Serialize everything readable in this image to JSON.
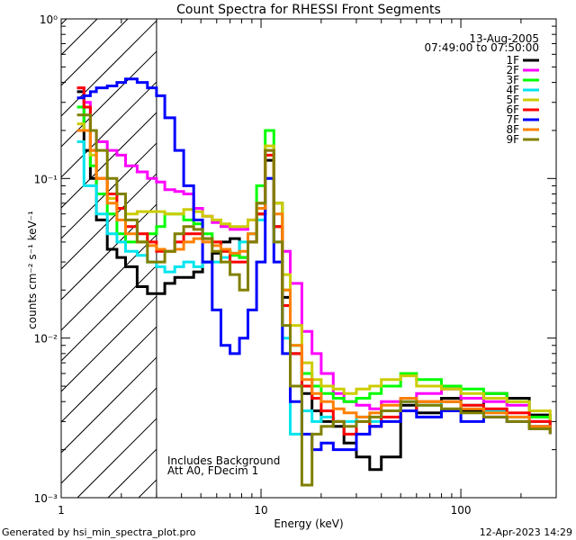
{
  "chart_data": {
    "type": "line",
    "title": "Count Spectra for RHESSI Front Segments",
    "xlabel": "Energy (keV)",
    "ylabel": "counts cm⁻² s⁻¹ keV⁻¹",
    "x_scale": "log",
    "y_scale": "log",
    "xlim": [
      1,
      300
    ],
    "ylim": [
      0.001,
      1
    ],
    "x_ticks": [
      {
        "value": 1,
        "label": "1"
      },
      {
        "value": 10,
        "label": "10"
      },
      {
        "value": 100,
        "label": "100"
      }
    ],
    "y_ticks": [
      {
        "value": 1,
        "label": "10⁰"
      },
      {
        "value": 0.1,
        "label": "10⁻¹"
      },
      {
        "value": 0.01,
        "label": "10⁻²"
      },
      {
        "value": 0.001,
        "label": "10⁻³"
      }
    ],
    "date": "13-Aug-2005",
    "time_range": "07:49:00 to 07:50:00",
    "notes": [
      "Includes Background",
      "Att A0, FDecim 1"
    ],
    "shaded_region_below_kev": 3,
    "legend_position": "top-right",
    "series": [
      {
        "name": "1F",
        "color": "#000000",
        "x": [
          1.2,
          1.3,
          1.4,
          1.5,
          1.7,
          1.9,
          2.1,
          2.4,
          2.7,
          3.0,
          3.3,
          3.7,
          4.1,
          4.6,
          5.1,
          5.7,
          6.3,
          7.0,
          7.8,
          8.6,
          9.5,
          10.5,
          11.6,
          12.8,
          14.0,
          16.0,
          18.0,
          20.0,
          23.0,
          26.0,
          30.0,
          35.0,
          40.0,
          50.0,
          60.0,
          80.0,
          100.0,
          130.0,
          170.0,
          220.0,
          280.0
        ],
        "values": [
          0.35,
          0.15,
          0.1,
          0.055,
          0.036,
          0.032,
          0.028,
          0.021,
          0.019,
          0.019,
          0.022,
          0.024,
          0.024,
          0.026,
          0.03,
          0.034,
          0.04,
          0.042,
          0.032,
          0.04,
          0.06,
          0.13,
          0.05,
          0.018,
          0.008,
          0.0045,
          0.0035,
          0.003,
          0.0028,
          0.0022,
          0.0018,
          0.0015,
          0.0018,
          0.0038,
          0.0034,
          0.0042,
          0.0035,
          0.0045,
          0.0042,
          0.0033,
          0.003
        ]
      },
      {
        "name": "2F",
        "color": "#ff00ff",
        "x": [
          1.2,
          1.3,
          1.4,
          1.5,
          1.7,
          1.9,
          2.1,
          2.4,
          2.7,
          3.0,
          3.3,
          3.7,
          4.1,
          4.6,
          5.1,
          5.7,
          6.3,
          7.0,
          7.8,
          8.6,
          9.5,
          10.5,
          11.6,
          12.8,
          14.0,
          16.0,
          18.0,
          20.0,
          23.0,
          26.0,
          30.0,
          35.0,
          40.0,
          50.0,
          60.0,
          80.0,
          100.0,
          130.0,
          170.0,
          220.0,
          280.0
        ],
        "values": [
          0.37,
          0.3,
          0.2,
          0.17,
          0.15,
          0.14,
          0.12,
          0.11,
          0.1,
          0.095,
          0.085,
          0.083,
          0.08,
          0.065,
          0.058,
          0.053,
          0.05,
          0.048,
          0.048,
          0.055,
          0.07,
          0.15,
          0.07,
          0.035,
          0.022,
          0.011,
          0.008,
          0.006,
          0.0045,
          0.004,
          0.0038,
          0.0036,
          0.004,
          0.0042,
          0.0045,
          0.0048,
          0.0042,
          0.004,
          0.0038,
          0.003,
          0.0028
        ]
      },
      {
        "name": "3F",
        "color": "#00ff00",
        "x": [
          1.2,
          1.3,
          1.4,
          1.5,
          1.7,
          1.9,
          2.1,
          2.4,
          2.7,
          3.0,
          3.3,
          3.7,
          4.1,
          4.6,
          5.1,
          5.7,
          6.3,
          7.0,
          7.8,
          8.6,
          9.5,
          10.5,
          11.6,
          12.8,
          14.0,
          16.0,
          18.0,
          20.0,
          23.0,
          26.0,
          30.0,
          35.0,
          40.0,
          50.0,
          60.0,
          80.0,
          100.0,
          130.0,
          170.0,
          220.0,
          280.0
        ],
        "values": [
          0.28,
          0.2,
          0.12,
          0.08,
          0.06,
          0.045,
          0.04,
          0.04,
          0.045,
          0.05,
          0.06,
          0.06,
          0.055,
          0.052,
          0.045,
          0.04,
          0.035,
          0.033,
          0.032,
          0.045,
          0.09,
          0.2,
          0.07,
          0.02,
          0.009,
          0.006,
          0.005,
          0.0045,
          0.0042,
          0.004,
          0.0042,
          0.0045,
          0.005,
          0.006,
          0.0055,
          0.005,
          0.0048,
          0.0045,
          0.004,
          0.0032,
          0.0028
        ]
      },
      {
        "name": "4F",
        "color": "#00e5ee",
        "x": [
          1.2,
          1.3,
          1.4,
          1.5,
          1.7,
          1.9,
          2.1,
          2.4,
          2.7,
          3.0,
          3.3,
          3.7,
          4.1,
          4.6,
          5.1,
          5.7,
          6.3,
          7.0,
          7.8,
          8.6,
          9.5,
          10.5,
          11.6,
          12.8,
          14.0,
          16.0,
          18.0,
          20.0,
          23.0,
          26.0,
          30.0,
          35.0,
          40.0,
          50.0,
          60.0,
          80.0,
          100.0,
          130.0,
          170.0,
          220.0,
          280.0
        ],
        "values": [
          0.17,
          0.09,
          0.09,
          0.06,
          0.045,
          0.04,
          0.035,
          0.033,
          0.03,
          0.028,
          0.026,
          0.028,
          0.03,
          0.028,
          0.03,
          0.03,
          0.032,
          0.034,
          0.04,
          0.045,
          0.055,
          0.1,
          0.04,
          0.01,
          0.0025,
          0.0035,
          0.003,
          0.0032,
          0.003,
          0.003,
          0.0032,
          0.003,
          0.0035,
          0.004,
          0.0038,
          0.004,
          0.0038,
          0.0035,
          0.0032,
          0.003,
          0.0027
        ]
      },
      {
        "name": "5F",
        "color": "#cccc00",
        "x": [
          1.2,
          1.3,
          1.4,
          1.5,
          1.7,
          1.9,
          2.1,
          2.4,
          2.7,
          3.0,
          3.3,
          3.7,
          4.1,
          4.6,
          5.1,
          5.7,
          6.3,
          7.0,
          7.8,
          8.6,
          9.5,
          10.5,
          11.6,
          12.8,
          14.0,
          16.0,
          18.0,
          20.0,
          23.0,
          26.0,
          30.0,
          35.0,
          40.0,
          50.0,
          60.0,
          80.0,
          100.0,
          130.0,
          170.0,
          220.0,
          280.0
        ],
        "values": [
          0.22,
          0.2,
          0.14,
          0.1,
          0.075,
          0.065,
          0.06,
          0.062,
          0.062,
          0.062,
          0.06,
          0.06,
          0.064,
          0.062,
          0.058,
          0.055,
          0.052,
          0.05,
          0.05,
          0.055,
          0.07,
          0.16,
          0.07,
          0.025,
          0.012,
          0.007,
          0.0055,
          0.005,
          0.0048,
          0.0045,
          0.0048,
          0.005,
          0.0055,
          0.0058,
          0.005,
          0.0048,
          0.0045,
          0.0042,
          0.004,
          0.0035,
          0.003
        ]
      },
      {
        "name": "6F",
        "color": "#ff0000",
        "x": [
          1.2,
          1.3,
          1.4,
          1.5,
          1.7,
          1.9,
          2.1,
          2.4,
          2.7,
          3.0,
          3.3,
          3.7,
          4.1,
          4.6,
          5.1,
          5.7,
          6.3,
          7.0,
          7.8,
          8.6,
          9.5,
          10.5,
          11.6,
          12.8,
          14.0,
          16.0,
          18.0,
          20.0,
          23.0,
          26.0,
          30.0,
          35.0,
          40.0,
          50.0,
          60.0,
          80.0,
          100.0,
          130.0,
          170.0,
          220.0,
          280.0
        ],
        "values": [
          0.37,
          0.28,
          0.15,
          0.1,
          0.08,
          0.065,
          0.05,
          0.045,
          0.04,
          0.035,
          0.035,
          0.04,
          0.045,
          0.045,
          0.042,
          0.04,
          0.035,
          0.03,
          0.03,
          0.04,
          0.06,
          0.14,
          0.05,
          0.016,
          0.008,
          0.005,
          0.0042,
          0.0035,
          0.003,
          0.0025,
          0.003,
          0.0028,
          0.0032,
          0.0035,
          0.004,
          0.004,
          0.0038,
          0.0036,
          0.0034,
          0.003,
          0.0027
        ]
      },
      {
        "name": "7F",
        "color": "#0000ff",
        "x": [
          1.2,
          1.3,
          1.4,
          1.5,
          1.7,
          1.9,
          2.1,
          2.4,
          2.7,
          3.0,
          3.3,
          3.7,
          4.1,
          4.6,
          5.1,
          5.7,
          6.3,
          7.0,
          7.8,
          8.6,
          9.5,
          10.5,
          11.6,
          12.8,
          14.0,
          16.0,
          18.0,
          20.0,
          23.0,
          26.0,
          30.0,
          35.0,
          40.0,
          50.0,
          60.0,
          80.0,
          100.0,
          130.0,
          170.0,
          220.0,
          280.0
        ],
        "values": [
          0.32,
          0.33,
          0.35,
          0.37,
          0.38,
          0.4,
          0.42,
          0.4,
          0.37,
          0.33,
          0.24,
          0.15,
          0.09,
          0.055,
          0.03,
          0.015,
          0.009,
          0.008,
          0.01,
          0.015,
          0.03,
          0.1,
          0.03,
          0.008,
          0.004,
          0.0025,
          0.002,
          0.0022,
          0.002,
          0.002,
          0.0025,
          0.0028,
          0.003,
          0.0035,
          0.0032,
          0.0035,
          0.003,
          0.0032,
          0.003,
          0.0028,
          0.0025
        ]
      },
      {
        "name": "8F",
        "color": "#ff8000",
        "x": [
          1.2,
          1.3,
          1.4,
          1.5,
          1.7,
          1.9,
          2.1,
          2.4,
          2.7,
          3.0,
          3.3,
          3.7,
          4.1,
          4.6,
          5.1,
          5.7,
          6.3,
          7.0,
          7.8,
          8.6,
          9.5,
          10.5,
          11.6,
          12.8,
          14.0,
          16.0,
          18.0,
          20.0,
          23.0,
          26.0,
          30.0,
          35.0,
          40.0,
          50.0,
          60.0,
          80.0,
          100.0,
          130.0,
          170.0,
          220.0,
          280.0
        ],
        "values": [
          0.2,
          0.2,
          0.15,
          0.1,
          0.07,
          0.055,
          0.045,
          0.04,
          0.038,
          0.036,
          0.035,
          0.036,
          0.04,
          0.042,
          0.04,
          0.038,
          0.036,
          0.034,
          0.035,
          0.045,
          0.065,
          0.15,
          0.06,
          0.02,
          0.009,
          0.0055,
          0.0045,
          0.004,
          0.0036,
          0.0034,
          0.0032,
          0.0034,
          0.0038,
          0.0042,
          0.004,
          0.004,
          0.0036,
          0.0034,
          0.0032,
          0.0028,
          0.0026
        ]
      },
      {
        "name": "9F",
        "color": "#808000",
        "x": [
          1.2,
          1.3,
          1.4,
          1.5,
          1.7,
          1.9,
          2.1,
          2.4,
          2.7,
          3.0,
          3.3,
          3.7,
          4.1,
          4.6,
          5.1,
          5.7,
          6.3,
          7.0,
          7.8,
          8.6,
          9.5,
          10.5,
          11.6,
          12.8,
          14.0,
          16.0,
          18.0,
          20.0,
          23.0,
          26.0,
          30.0,
          35.0,
          40.0,
          50.0,
          60.0,
          80.0,
          100.0,
          130.0,
          170.0,
          220.0,
          280.0
        ],
        "values": [
          0.25,
          0.25,
          0.2,
          0.15,
          0.1,
          0.08,
          0.055,
          0.04,
          0.03,
          0.03,
          0.035,
          0.045,
          0.05,
          0.048,
          0.042,
          0.035,
          0.03,
          0.025,
          0.02,
          0.04,
          0.07,
          0.15,
          0.04,
          0.012,
          0.005,
          0.0012,
          0.0025,
          0.0028,
          0.003,
          0.0028,
          0.003,
          0.0032,
          0.0035,
          0.004,
          0.0038,
          0.0036,
          0.0034,
          0.0032,
          0.003,
          0.0027,
          0.0025
        ]
      }
    ]
  },
  "footer": {
    "generated_by": "Generated by hsi_min_spectra_plot.pro",
    "timestamp": "12-Apr-2023 14:29"
  }
}
